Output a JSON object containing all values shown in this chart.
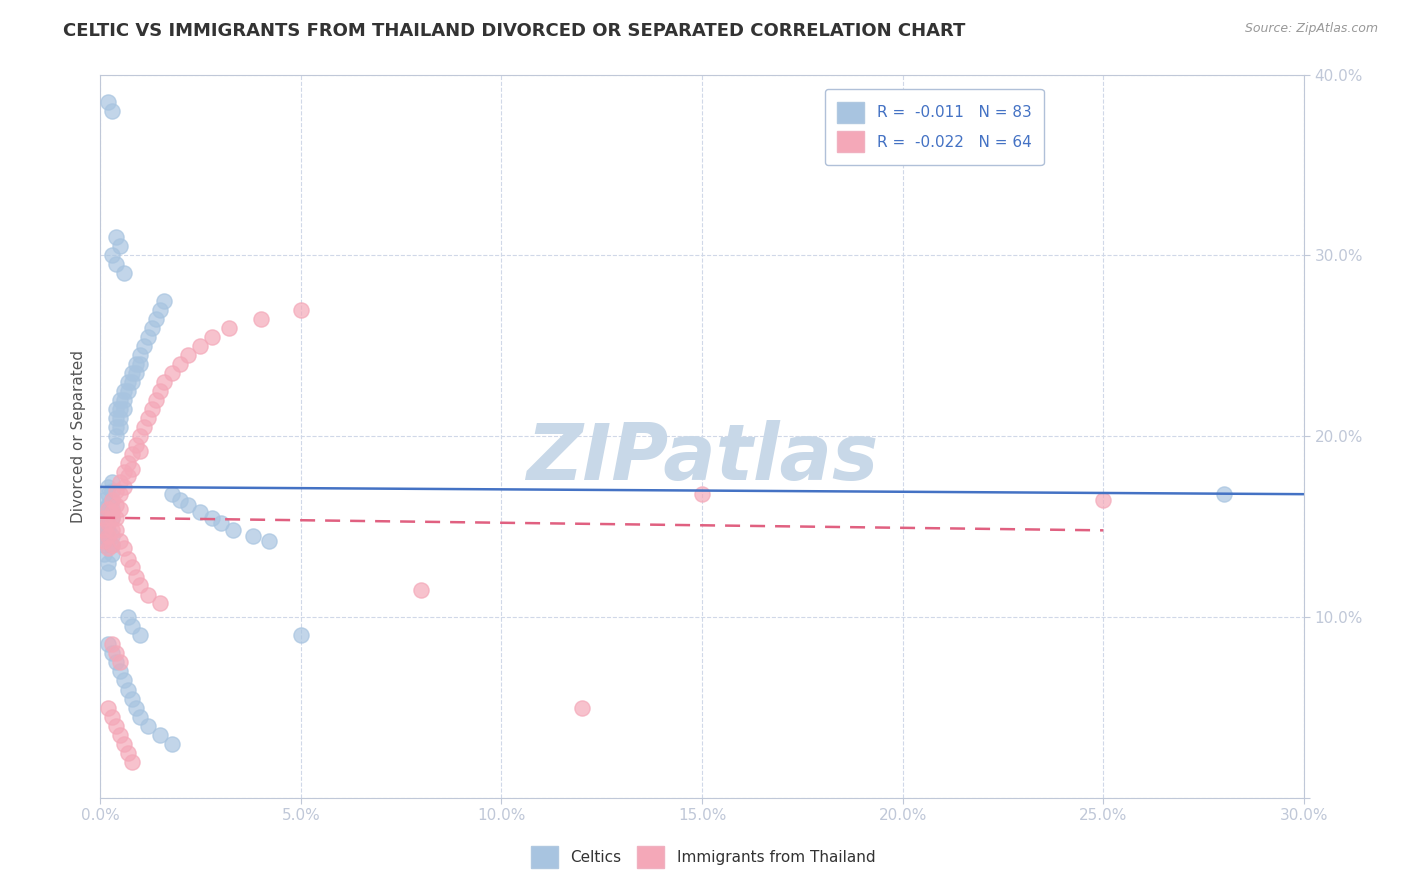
{
  "title": "CELTIC VS IMMIGRANTS FROM THAILAND DIVORCED OR SEPARATED CORRELATION CHART",
  "source_text": "Source: ZipAtlas.com",
  "ylabel": "Divorced or Separated",
  "xlim": [
    0.0,
    0.3
  ],
  "ylim": [
    0.0,
    0.4
  ],
  "xticks": [
    0.0,
    0.05,
    0.1,
    0.15,
    0.2,
    0.25,
    0.3
  ],
  "yticks": [
    0.0,
    0.1,
    0.2,
    0.3,
    0.4
  ],
  "xtick_labels": [
    "0.0%",
    "5.0%",
    "10.0%",
    "15.0%",
    "20.0%",
    "25.0%",
    "30.0%"
  ],
  "ytick_labels": [
    "",
    "10.0%",
    "20.0%",
    "30.0%",
    "40.0%"
  ],
  "legend_r1": "R =  -0.011",
  "legend_n1": "N = 83",
  "legend_r2": "R =  -0.022",
  "legend_n2": "N = 64",
  "color_celtics": "#a8c4e0",
  "color_thailand": "#f4a8b8",
  "line_color_celtics": "#4472c4",
  "line_color_thailand": "#e06080",
  "watermark": "ZIPatlas",
  "watermark_color": "#c8d8e8",
  "background_color": "#ffffff",
  "grid_color": "#d0d8e8",
  "celtic_line_y0": 0.172,
  "celtic_line_y1": 0.168,
  "thai_line_y0": 0.155,
  "thai_line_y1": 0.148,
  "thai_line_x1": 0.25,
  "celtics_x": [
    0.001,
    0.001,
    0.001,
    0.001,
    0.001,
    0.001,
    0.001,
    0.002,
    0.002,
    0.002,
    0.002,
    0.002,
    0.002,
    0.002,
    0.002,
    0.002,
    0.003,
    0.003,
    0.003,
    0.003,
    0.003,
    0.003,
    0.003,
    0.003,
    0.004,
    0.004,
    0.004,
    0.004,
    0.004,
    0.005,
    0.005,
    0.005,
    0.005,
    0.006,
    0.006,
    0.006,
    0.007,
    0.007,
    0.008,
    0.008,
    0.009,
    0.009,
    0.01,
    0.01,
    0.011,
    0.012,
    0.013,
    0.014,
    0.015,
    0.016,
    0.018,
    0.02,
    0.022,
    0.025,
    0.028,
    0.03,
    0.033,
    0.038,
    0.042,
    0.05,
    0.002,
    0.003,
    0.004,
    0.005,
    0.006,
    0.007,
    0.008,
    0.009,
    0.01,
    0.012,
    0.015,
    0.018,
    0.28,
    0.002,
    0.003,
    0.004,
    0.005,
    0.003,
    0.004,
    0.006,
    0.007,
    0.008,
    0.01
  ],
  "celtics_y": [
    0.155,
    0.16,
    0.15,
    0.165,
    0.145,
    0.14,
    0.135,
    0.158,
    0.162,
    0.148,
    0.152,
    0.168,
    0.142,
    0.172,
    0.13,
    0.125,
    0.17,
    0.175,
    0.165,
    0.16,
    0.155,
    0.145,
    0.14,
    0.135,
    0.21,
    0.215,
    0.205,
    0.2,
    0.195,
    0.22,
    0.215,
    0.21,
    0.205,
    0.225,
    0.22,
    0.215,
    0.23,
    0.225,
    0.235,
    0.23,
    0.24,
    0.235,
    0.245,
    0.24,
    0.25,
    0.255,
    0.26,
    0.265,
    0.27,
    0.275,
    0.168,
    0.165,
    0.162,
    0.158,
    0.155,
    0.152,
    0.148,
    0.145,
    0.142,
    0.09,
    0.085,
    0.08,
    0.075,
    0.07,
    0.065,
    0.06,
    0.055,
    0.05,
    0.045,
    0.04,
    0.035,
    0.03,
    0.168,
    0.385,
    0.38,
    0.31,
    0.305,
    0.3,
    0.295,
    0.29,
    0.1,
    0.095,
    0.09
  ],
  "thailand_x": [
    0.001,
    0.001,
    0.001,
    0.002,
    0.002,
    0.002,
    0.002,
    0.003,
    0.003,
    0.003,
    0.003,
    0.004,
    0.004,
    0.004,
    0.005,
    0.005,
    0.005,
    0.006,
    0.006,
    0.007,
    0.007,
    0.008,
    0.008,
    0.009,
    0.01,
    0.01,
    0.011,
    0.012,
    0.013,
    0.014,
    0.015,
    0.016,
    0.018,
    0.02,
    0.022,
    0.025,
    0.028,
    0.032,
    0.04,
    0.05,
    0.003,
    0.004,
    0.005,
    0.006,
    0.007,
    0.008,
    0.009,
    0.01,
    0.012,
    0.015,
    0.003,
    0.004,
    0.005,
    0.002,
    0.003,
    0.004,
    0.005,
    0.006,
    0.007,
    0.008,
    0.15,
    0.25,
    0.08,
    0.12
  ],
  "thailand_y": [
    0.155,
    0.148,
    0.142,
    0.16,
    0.152,
    0.145,
    0.138,
    0.165,
    0.158,
    0.148,
    0.14,
    0.17,
    0.162,
    0.155,
    0.175,
    0.168,
    0.16,
    0.18,
    0.172,
    0.185,
    0.178,
    0.19,
    0.182,
    0.195,
    0.2,
    0.192,
    0.205,
    0.21,
    0.215,
    0.22,
    0.225,
    0.23,
    0.235,
    0.24,
    0.245,
    0.25,
    0.255,
    0.26,
    0.265,
    0.27,
    0.155,
    0.148,
    0.142,
    0.138,
    0.132,
    0.128,
    0.122,
    0.118,
    0.112,
    0.108,
    0.085,
    0.08,
    0.075,
    0.05,
    0.045,
    0.04,
    0.035,
    0.03,
    0.025,
    0.02,
    0.168,
    0.165,
    0.115,
    0.05
  ]
}
